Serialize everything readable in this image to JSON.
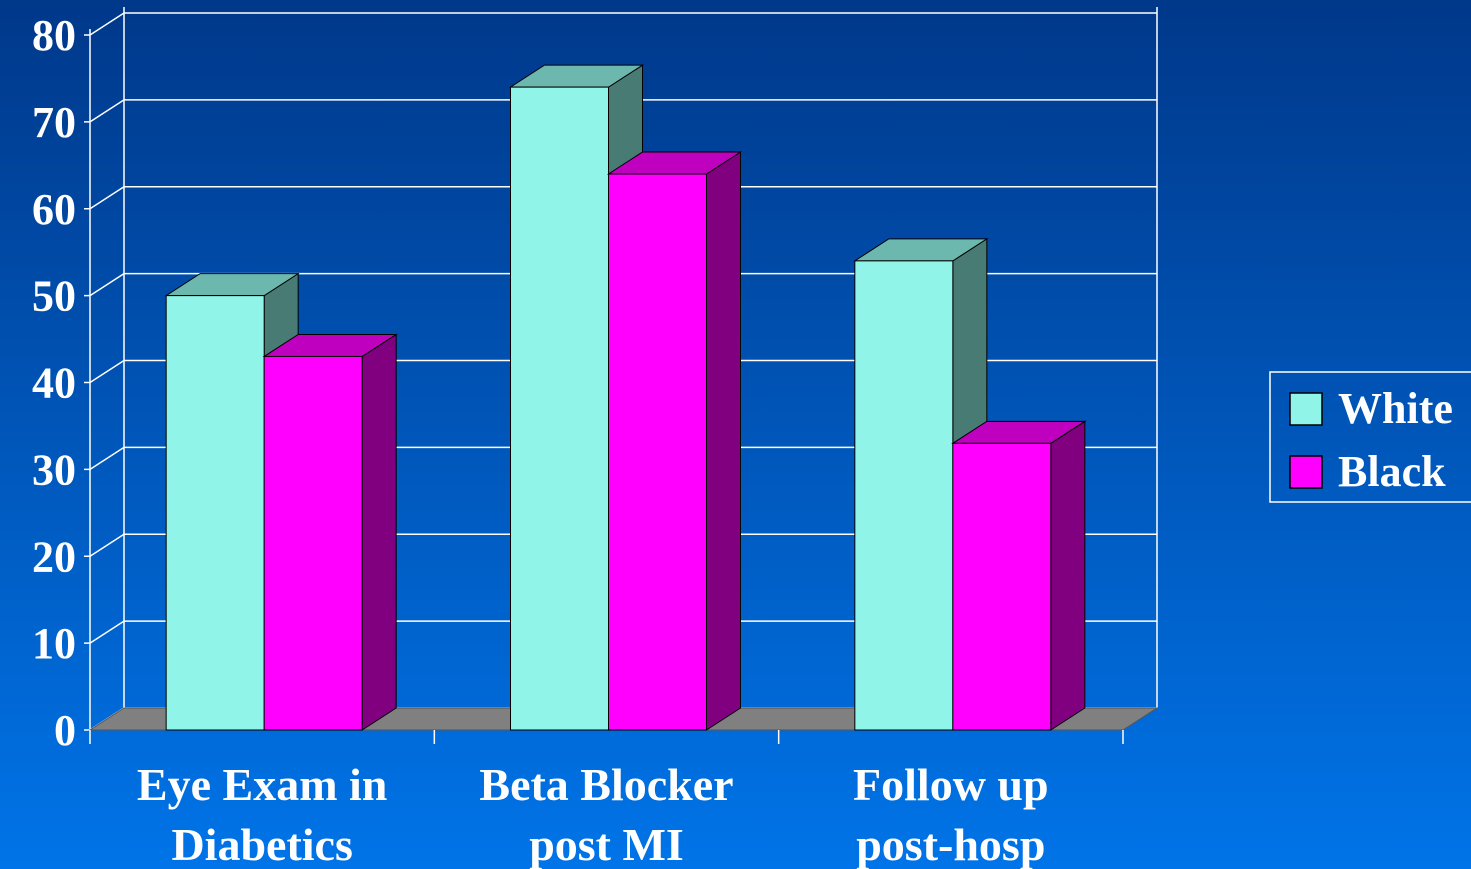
{
  "chart_data": {
    "type": "bar3d",
    "categories": [
      "Eye Exam in\nDiabetics",
      "Beta Blocker\npost MI",
      "Follow up\npost-hosp"
    ],
    "series": [
      {
        "name": "White",
        "color": "#90f5e8",
        "values": [
          50,
          74,
          54
        ]
      },
      {
        "name": "Black",
        "color": "#ff00ff",
        "values": [
          43,
          64,
          33
        ]
      }
    ],
    "ylim": [
      0,
      80
    ],
    "yticks": [
      0,
      10,
      20,
      30,
      40,
      50,
      60,
      70,
      80
    ],
    "grid": true,
    "legend": "right"
  }
}
